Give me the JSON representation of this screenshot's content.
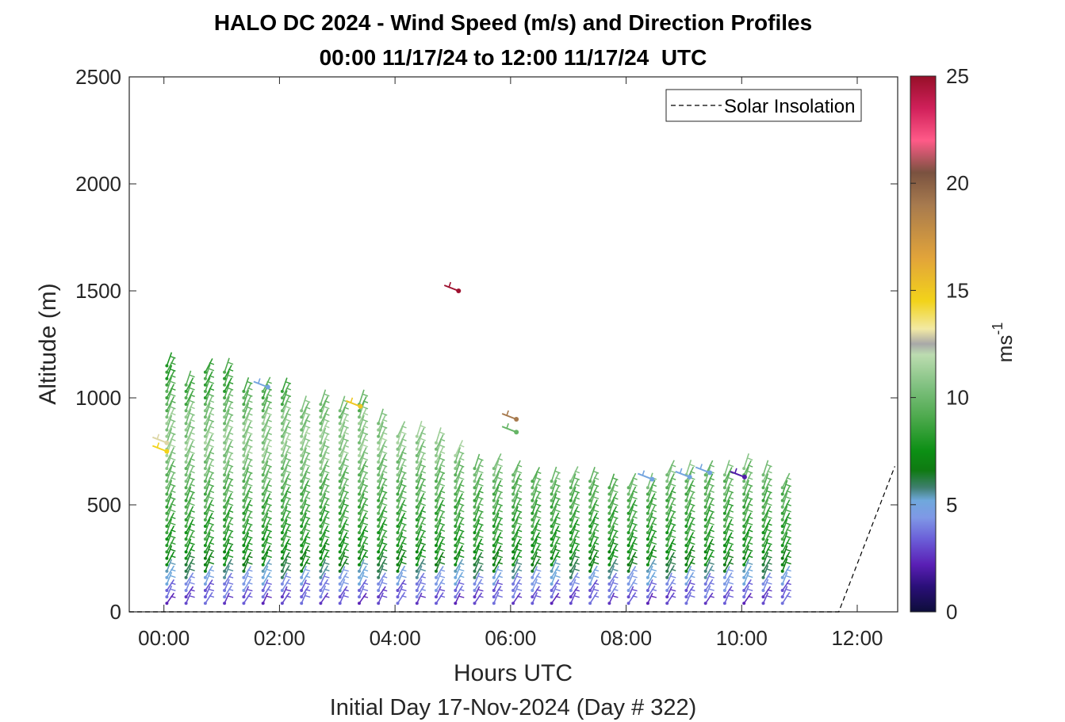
{
  "chart_data": {
    "type": "wind-barb-profile",
    "title": "HALO DC 2024 - Wind Speed (m/s) and Direction Profiles",
    "subtitle": "00:00 11/17/24 to 12:00 11/17/24  UTC",
    "xlabel": "Hours UTC",
    "ylabel": "Altitude (m)",
    "footer": "Initial Day 17-Nov-2024 (Day # 322)",
    "xlim_hours": [
      -0.6,
      12.7
    ],
    "ylim": [
      0,
      2500
    ],
    "xticks": [
      "00:00",
      "02:00",
      "04:00",
      "06:00",
      "08:00",
      "10:00",
      "12:00"
    ],
    "xtick_hours": [
      0,
      2,
      4,
      6,
      8,
      10,
      12
    ],
    "yticks": [
      "0",
      "500",
      "1000",
      "1500",
      "2000",
      "2500"
    ],
    "ytick_values": [
      0,
      500,
      1000,
      1500,
      2000,
      2500
    ],
    "legend": {
      "label": "Solar Insolation",
      "position": "top-right"
    },
    "colorbar": {
      "label": "ms",
      "label_superscript": "-1",
      "range": [
        0,
        25
      ],
      "ticks": [
        "0",
        "5",
        "10",
        "15",
        "20",
        "25"
      ],
      "tick_values": [
        0,
        5,
        10,
        15,
        20,
        25
      ],
      "colormap": [
        [
          0,
          "#0d0d3a"
        ],
        [
          1.2,
          "#2b0f7a"
        ],
        [
          2.2,
          "#5a1fb5"
        ],
        [
          3.4,
          "#6b5fd8"
        ],
        [
          4.4,
          "#7f98e6"
        ],
        [
          5.2,
          "#6fa8dc"
        ],
        [
          5.8,
          "#3f7f6f"
        ],
        [
          6.6,
          "#0f7a12"
        ],
        [
          7.5,
          "#0c8f14"
        ],
        [
          9.0,
          "#4aa84a"
        ],
        [
          10.5,
          "#7fc07f"
        ],
        [
          12.0,
          "#bcdcb0"
        ],
        [
          12.5,
          "#a8a8a8"
        ],
        [
          13.2,
          "#f2e9a4"
        ],
        [
          14.5,
          "#f2d31a"
        ],
        [
          16.5,
          "#e2a43a"
        ],
        [
          19.0,
          "#a77a4e"
        ],
        [
          20.5,
          "#7a5240"
        ],
        [
          22.0,
          "#ff5a88"
        ],
        [
          23.5,
          "#d0205a"
        ],
        [
          25,
          "#960f28"
        ]
      ]
    },
    "solar_insolation": {
      "hours": [
        -0.6,
        11.68,
        12.65
      ],
      "altitude_m": [
        0,
        0,
        680
      ]
    },
    "profiles": {
      "start_hour": 0.05,
      "interval_hours": 0.333,
      "count": 33,
      "top_altitudes_m": [
        1170,
        1080,
        1130,
        1130,
        1040,
        1050,
        1030,
        960,
        980,
        960,
        990,
        880,
        840,
        840,
        800,
        740,
        690,
        670,
        640,
        610,
        610,
        610,
        610,
        600,
        600,
        590,
        640,
        640,
        650,
        660,
        670,
        650,
        590
      ],
      "base_altitude_m": 40,
      "level_spacing_m": 30,
      "speed_by_altitude_m_s": [
        [
          40,
          3.0
        ],
        [
          100,
          3.8
        ],
        [
          160,
          5.2
        ],
        [
          220,
          7.0
        ],
        [
          320,
          8.2
        ],
        [
          450,
          8.8
        ],
        [
          600,
          9.8
        ],
        [
          750,
          11.0
        ],
        [
          900,
          10.5
        ],
        [
          1000,
          9.0
        ],
        [
          1200,
          8.0
        ]
      ],
      "direction_deg": 300
    },
    "highlighted_barbs": [
      {
        "hour": 5.1,
        "altitude_m": 1500,
        "speed_m_s": 24.8
      },
      {
        "hour": 6.1,
        "altitude_m": 900,
        "speed_m_s": 19.0
      },
      {
        "hour": 6.1,
        "altitude_m": 840,
        "speed_m_s": 9.8
      },
      {
        "hour": 3.4,
        "altitude_m": 960,
        "speed_m_s": 15.0
      },
      {
        "hour": 1.8,
        "altitude_m": 1050,
        "speed_m_s": 5.0
      },
      {
        "hour": 0.05,
        "altitude_m": 750,
        "speed_m_s": 14.5
      },
      {
        "hour": 0.05,
        "altitude_m": 790,
        "speed_m_s": 13.0
      },
      {
        "hour": 8.45,
        "altitude_m": 620,
        "speed_m_s": 5.0
      },
      {
        "hour": 9.1,
        "altitude_m": 630,
        "speed_m_s": 5.0
      },
      {
        "hour": 9.45,
        "altitude_m": 650,
        "speed_m_s": 5.0
      },
      {
        "hour": 10.05,
        "altitude_m": 630,
        "speed_m_s": 2.0
      }
    ]
  }
}
